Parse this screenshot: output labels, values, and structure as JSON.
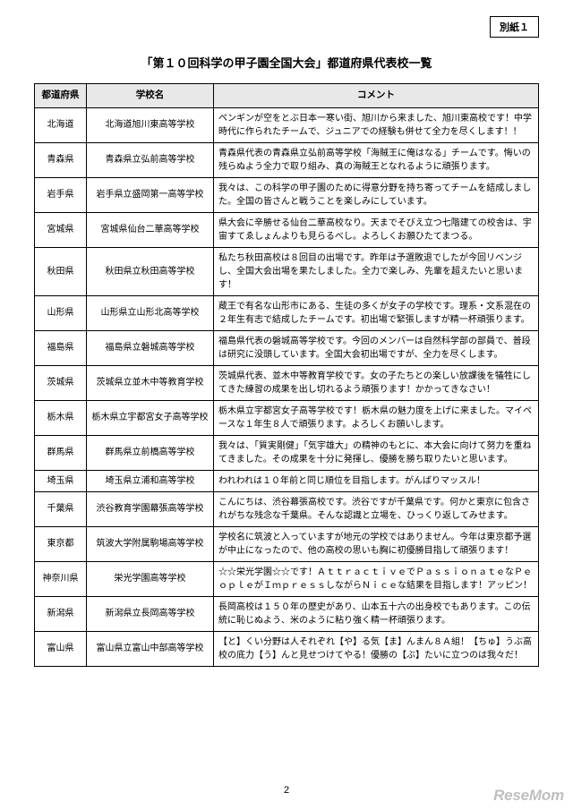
{
  "attachment_label": "別紙１",
  "title": "「第１０回科学の甲子園全国大会」都道府県代表校一覧",
  "headers": {
    "pref": "都道府県",
    "school": "学校名",
    "comment": "コメント"
  },
  "rows": [
    {
      "pref": "北海道",
      "school": "北海道旭川東高等学校",
      "comment": "ペンギンが空をとぶ日本一寒い街、旭川から来ました、旭川東高校です！中学時代に作られたチームで、ジュニアでの経験も併せて全力を尽くします！！"
    },
    {
      "pref": "青森県",
      "school": "青森県立弘前高等学校",
      "comment": "青森県代表の青森県立弘前高等学校「海賊王に俺はなる」チームです。悔いの残らぬよう全力で取り組み、真の海賊王となれるように頑張ります。"
    },
    {
      "pref": "岩手県",
      "school": "岩手県立盛岡第一高等学校",
      "comment": "我々は、この科学の甲子園のために得意分野を持ち寄ってチームを結成しました。全国の皆さんと戦うことを楽しみにしています。"
    },
    {
      "pref": "宮城県",
      "school": "宮城県仙台二華高等学校",
      "comment": "県大会に辛勝せる仙台二華高校なり。天までそびえ立つ七階建ての校舎は、宇宙すてゑしょんよりも見らるべし。よろしくお願ひたてまつる。"
    },
    {
      "pref": "秋田県",
      "school": "秋田県立秋田高等学校",
      "comment": "私たち秋田高校は８回目の出場です。昨年は予選敗退でしたが今回リベンジし、全国大会出場を果たしました。全力で楽しみ、先輩を超えたいと思います！"
    },
    {
      "pref": "山形県",
      "school": "山形県立山形北高等学校",
      "comment": "蔵王で有名な山形市にある、生徒の多くが女子の学校です。理系・文系混在の２年生有志で結成したチームです。初出場で緊張しますが精一杯頑張ります。"
    },
    {
      "pref": "福島県",
      "school": "福島県立磐城高等学校",
      "comment": "福島県代表の磐城高等学校です。今回のメンバーは自然科学部の部員で、普段は研究に没頭しています。全国大会初出場ですが、全力を尽くします。"
    },
    {
      "pref": "茨城県",
      "school": "茨城県立並木中等教育学校",
      "comment": "茨城県代表、並木中等教育学校です。女の子たちとの楽しい放課後を犠牲にしてきた練習の成果を出し切れるよう頑張ります！かかってきなさい！"
    },
    {
      "pref": "栃木県",
      "school": "栃木県立宇都宮女子高等学校",
      "comment": "栃木県立宇都宮女子高等学校です！栃木県の魅力度を上げに来ました。マイペースな１年生８人で頑張ります。よろしくお願いします。"
    },
    {
      "pref": "群馬県",
      "school": "群馬県立前橋高等学校",
      "comment": "我々は、「質実剛健」「気宇雄大」の精神のもとに、本大会に向けて努力を重ねてきました。その成果を十分に発揮し、優勝を勝ち取りたいと思います。"
    },
    {
      "pref": "埼玉県",
      "school": "埼玉県立浦和高等学校",
      "comment": "われわれは１０年前と同じ順位を目指します。がんばりマッスル！"
    },
    {
      "pref": "千葉県",
      "school": "渋谷教育学園幕張高等学校",
      "comment": "こんにちは、渋谷幕張高校です。渋谷ですが千葉県です。何かと東京に包含されがちな残念な千葉県。そんな認識と立場を、ひっくり返してみせます。"
    },
    {
      "pref": "東京都",
      "school": "筑波大学附属駒場高等学校",
      "comment": "学校名に筑波と入っていますが地元の学校ではありません。今年は東京都予選が中止になったので、他の高校の思いも胸に初優勝目指して頑張ります！"
    },
    {
      "pref": "神奈川県",
      "school": "栄光学園高等学校",
      "comment": "☆☆栄光学園☆☆です！ＡｔｔｒａｃｔｉｖｅでＰａｓｓｉｏｎａｔｅなＰｅｏｐｌｅがＩｍｐｒｅｓｓしながらＮｉｃｅな結果を目指します！アッピン！"
    },
    {
      "pref": "新潟県",
      "school": "新潟県立長岡高等学校",
      "comment": "長岡高校は１５０年の歴史があり、山本五十六の出身校でもあります。この伝統に恥じぬよう、米のように粘り強く精一杯頑張ります。"
    },
    {
      "pref": "富山県",
      "school": "富山県立富山中部高等学校",
      "comment": "【と】くい分野は人それぞれ【や】る気【ま】んまん８Ａ組！【ちゅ】うぶ高校の底力【う】んと見せつけてやる！優勝の【ぶ】たいに立つのは我々だ！"
    }
  ],
  "page_number": "2",
  "watermark": "ReseMom"
}
